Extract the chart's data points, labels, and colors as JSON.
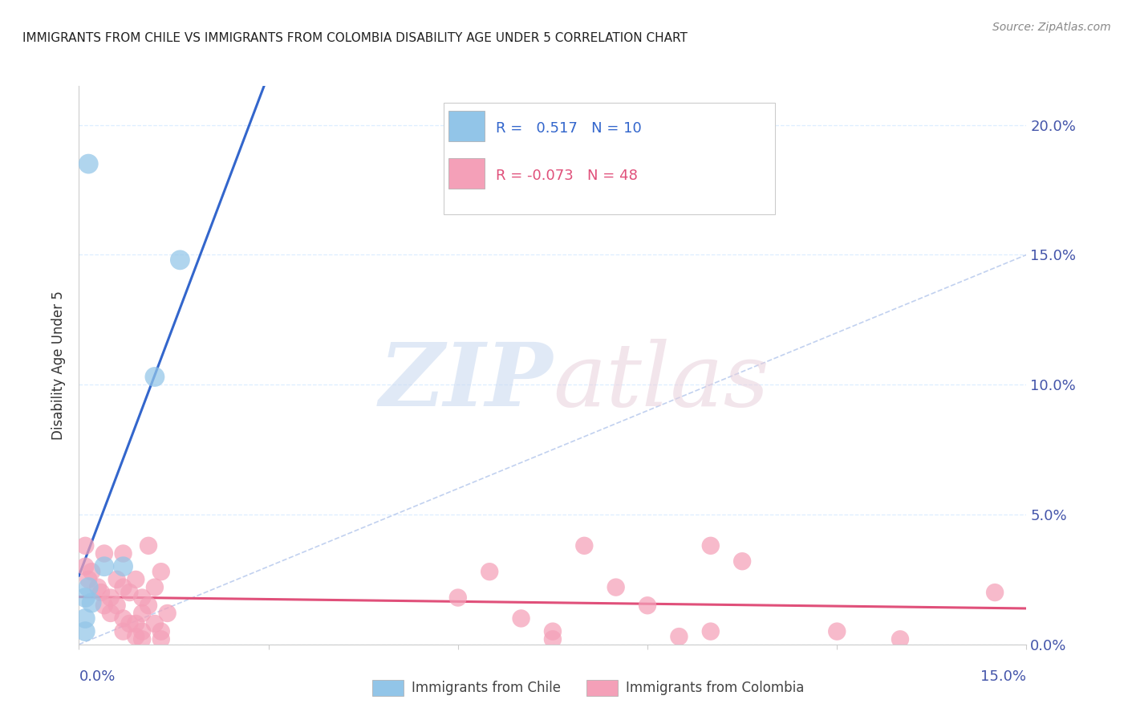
{
  "title": "IMMIGRANTS FROM CHILE VS IMMIGRANTS FROM COLOMBIA DISABILITY AGE UNDER 5 CORRELATION CHART",
  "source": "Source: ZipAtlas.com",
  "ylabel": "Disability Age Under 5",
  "xlim": [
    0.0,
    0.15
  ],
  "ylim": [
    0.0,
    0.215
  ],
  "ytick_vals": [
    0.0,
    0.05,
    0.1,
    0.15,
    0.2
  ],
  "ytick_labels": [
    "0.0%",
    "5.0%",
    "10.0%",
    "15.0%",
    "20.0%"
  ],
  "xtick_vals": [
    0.0,
    0.03,
    0.06,
    0.09,
    0.12,
    0.15
  ],
  "chile_color": "#92C5E8",
  "colombia_color": "#F4A0B8",
  "chile_line_color": "#3366CC",
  "colombia_line_color": "#E0507A",
  "diag_line_color": "#BBCCEE",
  "legend_chile_R": "0.517",
  "legend_chile_N": "10",
  "legend_colombia_R": "-0.073",
  "legend_colombia_N": "48",
  "chile_points": [
    [
      0.0015,
      0.185
    ],
    [
      0.016,
      0.148
    ],
    [
      0.012,
      0.103
    ],
    [
      0.004,
      0.03
    ],
    [
      0.007,
      0.03
    ],
    [
      0.0015,
      0.022
    ],
    [
      0.001,
      0.018
    ],
    [
      0.002,
      0.016
    ],
    [
      0.001,
      0.01
    ],
    [
      0.001,
      0.005
    ]
  ],
  "colombia_points": [
    [
      0.001,
      0.038
    ],
    [
      0.001,
      0.03
    ],
    [
      0.0015,
      0.025
    ],
    [
      0.002,
      0.028
    ],
    [
      0.003,
      0.022
    ],
    [
      0.0035,
      0.02
    ],
    [
      0.004,
      0.035
    ],
    [
      0.004,
      0.015
    ],
    [
      0.005,
      0.018
    ],
    [
      0.005,
      0.012
    ],
    [
      0.006,
      0.025
    ],
    [
      0.006,
      0.015
    ],
    [
      0.007,
      0.035
    ],
    [
      0.007,
      0.022
    ],
    [
      0.007,
      0.01
    ],
    [
      0.007,
      0.005
    ],
    [
      0.008,
      0.02
    ],
    [
      0.008,
      0.008
    ],
    [
      0.009,
      0.025
    ],
    [
      0.009,
      0.008
    ],
    [
      0.009,
      0.003
    ],
    [
      0.01,
      0.018
    ],
    [
      0.01,
      0.012
    ],
    [
      0.01,
      0.005
    ],
    [
      0.01,
      0.002
    ],
    [
      0.011,
      0.038
    ],
    [
      0.011,
      0.015
    ],
    [
      0.012,
      0.022
    ],
    [
      0.012,
      0.008
    ],
    [
      0.013,
      0.028
    ],
    [
      0.013,
      0.005
    ],
    [
      0.013,
      0.002
    ],
    [
      0.014,
      0.012
    ],
    [
      0.06,
      0.018
    ],
    [
      0.065,
      0.028
    ],
    [
      0.07,
      0.01
    ],
    [
      0.075,
      0.005
    ],
    [
      0.075,
      0.002
    ],
    [
      0.08,
      0.038
    ],
    [
      0.085,
      0.022
    ],
    [
      0.09,
      0.015
    ],
    [
      0.095,
      0.003
    ],
    [
      0.1,
      0.038
    ],
    [
      0.1,
      0.005
    ],
    [
      0.105,
      0.032
    ],
    [
      0.12,
      0.005
    ],
    [
      0.13,
      0.002
    ],
    [
      0.145,
      0.02
    ]
  ],
  "background_color": "#FFFFFF",
  "grid_color": "#DDEEFF",
  "title_color": "#222222",
  "axis_tick_color": "#4455AA",
  "ylabel_color": "#333333"
}
